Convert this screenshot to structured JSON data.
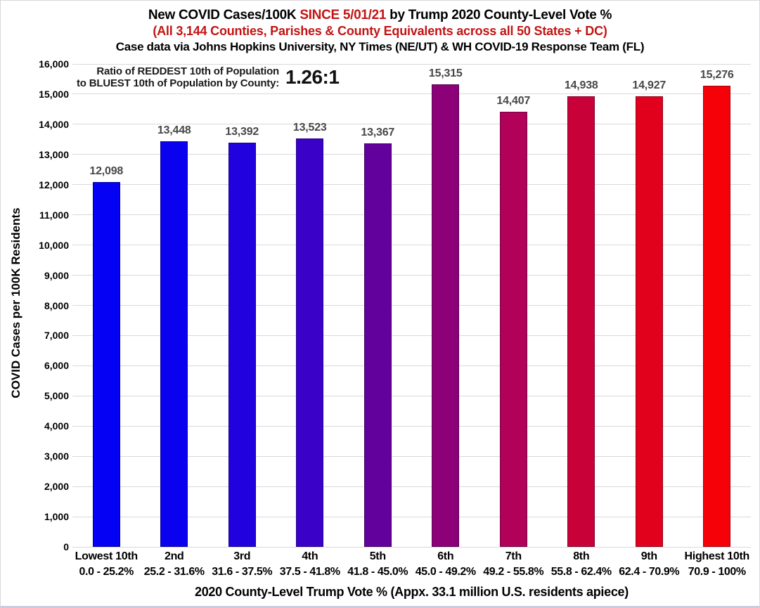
{
  "header": {
    "title_part1": "New COVID Cases/100K ",
    "title_highlight": "SINCE 5/01/21",
    "title_part2": " by Trump 2020 County-Level Vote %",
    "subtitle": "(All 3,144 Counties, Parishes & County Equivalents across all 50 States + DC)",
    "source_line": "Case data via Johns Hopkins University, NY Times (NE/UT) & WH COVID-19 Response Team (FL)",
    "highlight_color": "#c31414"
  },
  "annotation": {
    "line1": "Ratio of REDDEST 10th of Population",
    "line2": "to BLUEST 10th of Population by County:",
    "ratio": "1.26:1"
  },
  "chart_data": {
    "type": "bar",
    "title": "New COVID Cases/100K SINCE 5/01/21 by Trump 2020 County-Level Vote %",
    "xlabel": "2020 County-Level Trump Vote % (Appx. 33.1 million U.S. residents apiece)",
    "ylabel": "COVID Cases per 100K Residents",
    "categories": [
      "Lowest 10th",
      "2nd",
      "3rd",
      "4th",
      "5th",
      "6th",
      "7th",
      "8th",
      "9th",
      "Highest 10th"
    ],
    "category_ranges": [
      "0.0 - 25.2%",
      "25.2 - 31.6%",
      "31.6 - 37.5%",
      "37.5 - 41.8%",
      "41.8 - 45.0%",
      "45.0 - 49.2%",
      "49.2 - 55.8%",
      "55.8 - 62.4%",
      "62.4 - 70.9%",
      "70.9 - 100%"
    ],
    "values": [
      12098,
      13448,
      13392,
      13523,
      13367,
      15315,
      14407,
      14938,
      14927,
      15276
    ],
    "bar_colors": [
      "#0401f5",
      "#0a01ef",
      "#2101de",
      "#3a01c9",
      "#62019b",
      "#8c0177",
      "#b20158",
      "#c80139",
      "#e2011d",
      "#f60108"
    ],
    "ylim": [
      0,
      16000
    ],
    "ytick_step": 1000,
    "grid": true,
    "gridline_color": "#d9d9d9",
    "value_label_color": "#474747",
    "legend": "none"
  }
}
